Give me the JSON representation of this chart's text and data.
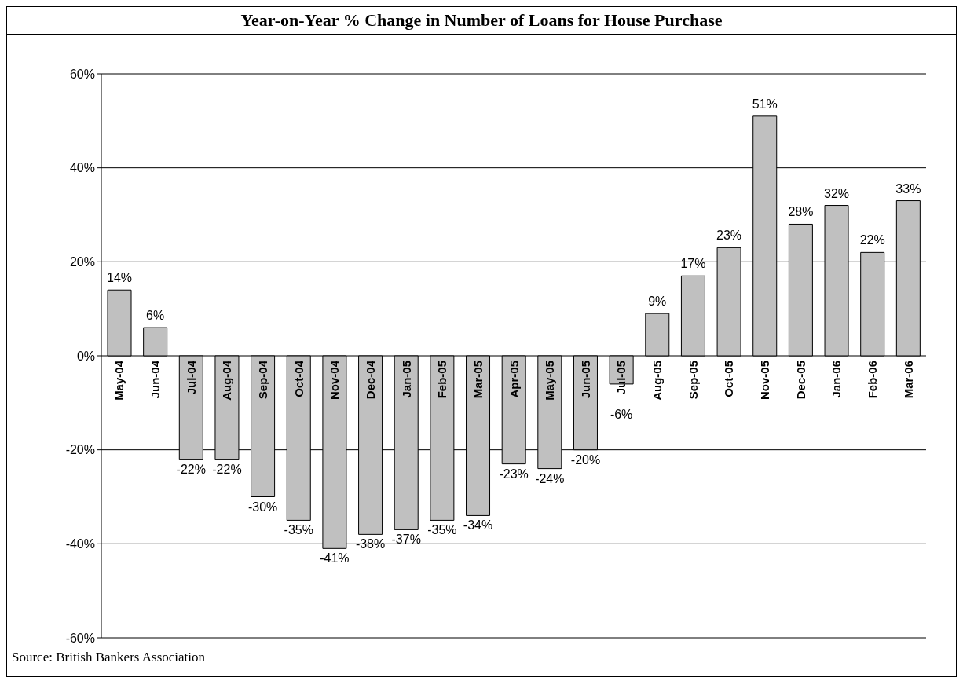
{
  "chart_data": {
    "type": "bar",
    "title": "Year-on-Year % Change in Number of Loans for House Purchase",
    "categories": [
      "May-04",
      "Jun-04",
      "Jul-04",
      "Aug-04",
      "Sep-04",
      "Oct-04",
      "Nov-04",
      "Dec-04",
      "Jan-05",
      "Feb-05",
      "Mar-05",
      "Apr-05",
      "May-05",
      "Jun-05",
      "Jul-05",
      "Aug-05",
      "Sep-05",
      "Oct-05",
      "Nov-05",
      "Dec-05",
      "Jan-06",
      "Feb-06",
      "Mar-06"
    ],
    "values": [
      14,
      6,
      -22,
      -22,
      -30,
      -35,
      -41,
      -38,
      -37,
      -35,
      -34,
      -23,
      -24,
      -20,
      -6,
      9,
      17,
      23,
      51,
      28,
      32,
      22,
      33
    ],
    "value_labels": [
      "14%",
      "6%",
      "-22%",
      "-22%",
      "-30%",
      "-35%",
      "-41%",
      "-38%",
      "-37%",
      "-35%",
      "-34%",
      "-23%",
      "-24%",
      "-20%",
      "-6%",
      "9%",
      "17%",
      "23%",
      "51%",
      "28%",
      "32%",
      "22%",
      "33%"
    ],
    "color": "#c0c0c0",
    "ylim": [
      -60,
      60
    ],
    "yticks": [
      {
        "value": -60,
        "label": "-60%"
      },
      {
        "value": -40,
        "label": "-40%"
      },
      {
        "value": -20,
        "label": "-20%"
      },
      {
        "value": 0,
        "label": "0%"
      },
      {
        "value": 20,
        "label": "20%"
      },
      {
        "value": 40,
        "label": "40%"
      },
      {
        "value": 60,
        "label": "60%"
      }
    ],
    "grid": "y",
    "annotations": [
      "Source: British Bankers Association"
    ]
  }
}
